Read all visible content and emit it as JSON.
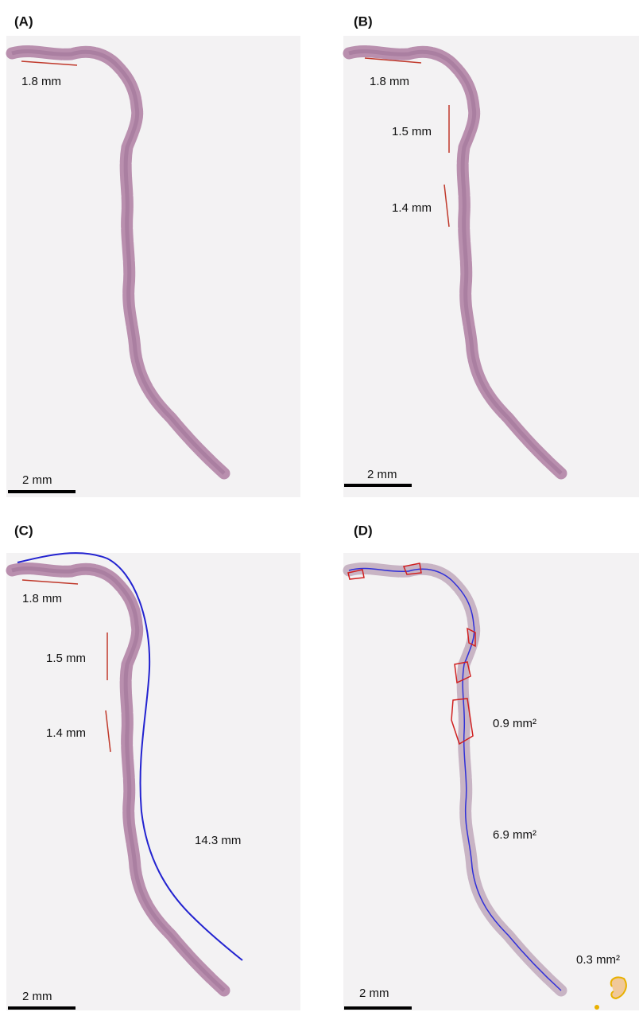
{
  "panels": [
    {
      "label": "(A)",
      "scale_bar": "2 mm",
      "annotations": [
        "1.8 mm"
      ]
    },
    {
      "label": "(B)",
      "scale_bar": "2 mm",
      "annotations": [
        "1.8 mm",
        "1.5 mm",
        "1.4 mm"
      ]
    },
    {
      "label": "(C)",
      "scale_bar": "2 mm",
      "annotations": [
        "1.8 mm",
        "1.5 mm",
        "1.4 mm",
        "14.3 mm"
      ]
    },
    {
      "label": "(D)",
      "scale_bar": "2 mm",
      "annotations": [
        "0.9 mm²",
        "6.9 mm²",
        "0.3 mm²"
      ]
    }
  ]
}
